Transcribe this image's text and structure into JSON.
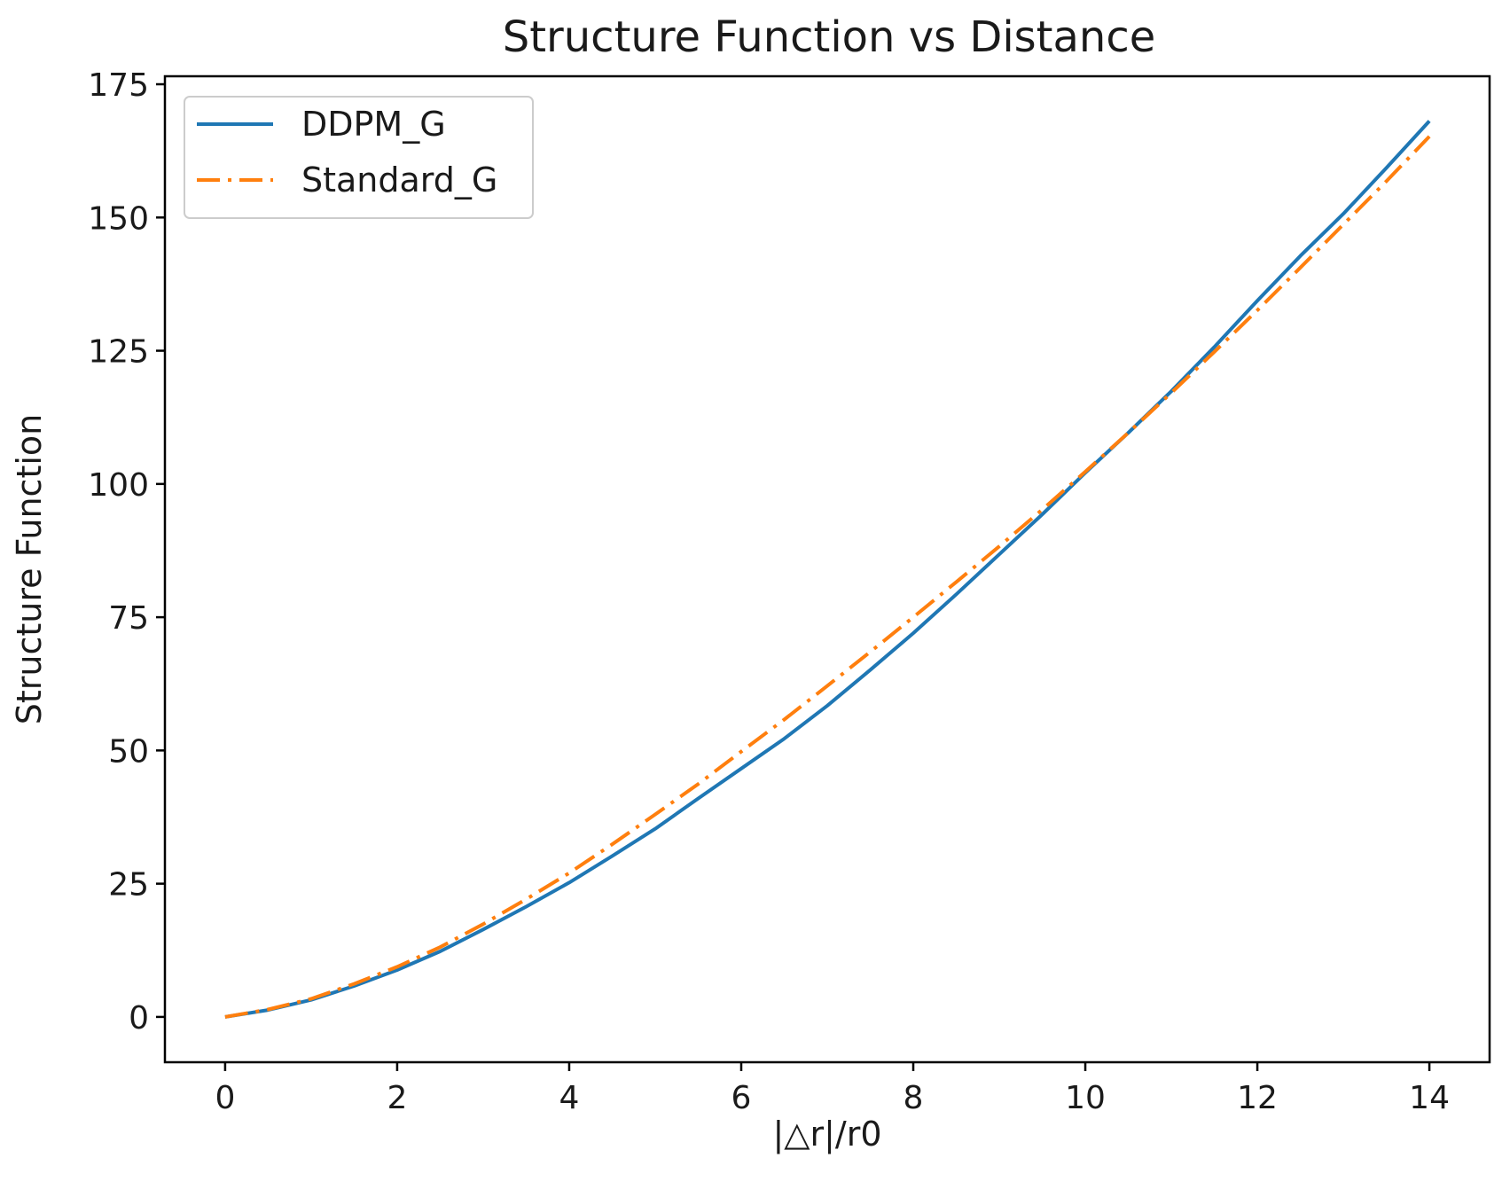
{
  "chart_data": {
    "type": "line",
    "title": "Structure Function vs Distance",
    "xlabel": "|△r|/r0",
    "ylabel": "Structure Function",
    "xlim": [
      -0.7,
      14.7
    ],
    "ylim": [
      -8.5,
      176.5
    ],
    "xticks": [
      0,
      2,
      4,
      6,
      8,
      10,
      12,
      14
    ],
    "yticks": [
      0,
      25,
      50,
      75,
      100,
      125,
      150,
      175
    ],
    "grid": false,
    "legend_position": "top-left",
    "series": [
      {
        "name": "DDPM_G",
        "color": "#1f77b4",
        "style": "solid",
        "x": [
          0,
          0.5,
          1,
          1.5,
          2,
          2.5,
          3,
          3.5,
          4,
          4.5,
          5,
          5.5,
          6,
          6.5,
          7,
          7.5,
          8,
          8.5,
          9,
          9.5,
          10,
          10.5,
          11,
          11.5,
          12,
          12.5,
          13,
          13.5,
          14
        ],
        "y": [
          0,
          1.3,
          3.2,
          5.8,
          8.8,
          12.3,
          16.4,
          20.7,
          25.2,
          30.2,
          35.3,
          41.0,
          46.6,
          52.2,
          58.4,
          65.1,
          72.0,
          79.3,
          86.8,
          94.3,
          102.1,
          109.6,
          117.4,
          125.7,
          134.4,
          142.8,
          150.7,
          159.3,
          168.1
        ]
      },
      {
        "name": "Standard_G",
        "color": "#ff7f0e",
        "style": "dashdot",
        "x": [
          0,
          0.5,
          1,
          1.5,
          2,
          2.5,
          3,
          3.5,
          4,
          4.5,
          5,
          5.5,
          6,
          6.5,
          7,
          7.5,
          8,
          8.5,
          9,
          9.5,
          10,
          10.5,
          11,
          11.5,
          12,
          12.5,
          13,
          13.5,
          14
        ],
        "y": [
          0,
          1.4,
          3.4,
          6.2,
          9.4,
          13.1,
          17.4,
          22.1,
          27.0,
          32.4,
          38.0,
          43.7,
          49.8,
          55.8,
          62.1,
          68.5,
          75.0,
          81.6,
          88.3,
          95.2,
          102.3,
          109.6,
          117.1,
          124.8,
          132.6,
          140.6,
          148.7,
          156.8,
          165.2
        ]
      }
    ]
  }
}
